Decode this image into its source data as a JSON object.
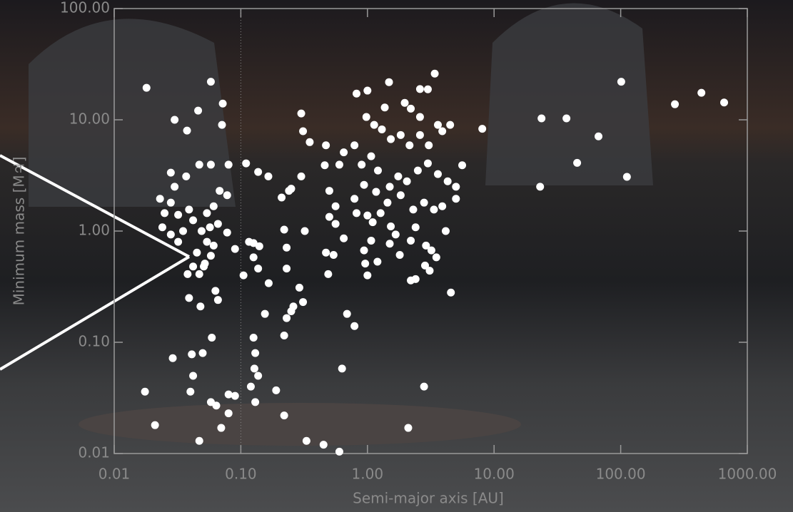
{
  "chart_data": {
    "type": "scatter",
    "xlabel": "Semi-major axis [AU]",
    "ylabel": "Minimum mass [M♃]",
    "log_x": true,
    "log_y": true,
    "xlim": [
      0.01,
      1000
    ],
    "ylim": [
      0.01,
      100
    ],
    "xticks": [
      {
        "value": 0.01,
        "label": "0.01"
      },
      {
        "value": 0.1,
        "label": "0.10"
      },
      {
        "value": 1,
        "label": "1.00"
      },
      {
        "value": 10,
        "label": "10.00"
      },
      {
        "value": 100,
        "label": "100.00"
      },
      {
        "value": 1000,
        "label": "1000.00"
      }
    ],
    "yticks": [
      {
        "value": 0.01,
        "label": "0.01"
      },
      {
        "value": 0.1,
        "label": "0.10"
      },
      {
        "value": 1,
        "label": "1.00"
      },
      {
        "value": 10,
        "label": "10.00"
      },
      {
        "value": 100,
        "label": "100.00"
      }
    ],
    "vlines": [
      0.1
    ],
    "color": "#ffffff",
    "x": [
      656,
      434,
      268,
      101,
      112,
      66.8,
      45.3,
      37.3,
      23.7,
      23.1,
      8.07,
      4.56,
      5.6,
      0.018,
      0.058,
      0.046,
      0.03,
      0.0376,
      0.072,
      0.071,
      0.0175,
      0.021,
      0.029,
      0.047,
      0.04,
      0.042,
      0.05,
      0.059,
      0.058,
      0.064,
      0.08,
      0.09,
      0.07,
      0.08,
      0.041,
      0.063,
      0.039,
      0.048,
      0.066,
      0.049,
      0.054,
      0.045,
      0.052,
      0.042,
      0.058,
      0.047,
      0.038,
      0.057,
      0.042,
      0.032,
      0.025,
      0.024,
      0.028,
      0.032,
      0.035,
      0.061,
      0.039,
      0.028,
      0.023,
      0.03,
      0.028,
      0.037,
      0.047,
      0.058,
      0.08,
      0.068,
      0.078,
      0.054,
      0.066,
      0.078,
      0.09,
      0.061,
      0.051,
      0.11,
      0.137,
      0.165,
      0.105,
      0.116,
      0.126,
      0.14,
      0.126,
      0.137,
      0.166,
      0.155,
      0.126,
      0.13,
      0.128,
      0.137,
      0.12,
      0.13,
      0.19,
      0.22,
      0.22,
      0.23,
      0.25,
      0.26,
      0.29,
      0.31,
      0.22,
      0.23,
      0.23,
      0.21,
      0.24,
      0.25,
      0.3,
      0.3,
      0.31,
      0.35,
      0.32,
      0.33,
      0.45,
      0.6,
      0.47,
      0.46,
      0.5,
      0.56,
      0.56,
      0.5,
      0.47,
      0.49,
      0.54,
      0.6,
      0.65,
      0.65,
      0.63,
      0.69,
      0.79,
      0.82,
      1.0,
      1.48,
      3.4,
      2.6,
      3,
      1.97,
      2.2,
      2.6,
      3.6,
      4.5,
      3.9,
      1.37,
      0.98,
      1.13,
      1.3,
      1.53,
      1.83,
      2.15,
      2.6,
      3.05,
      0.79,
      0.9,
      1.07,
      1.21,
      1.5,
      1.75,
      2.05,
      2.5,
      3,
      3.6,
      4.3,
      5,
      5,
      3.9,
      3.35,
      2.8,
      2.3,
      1.83,
      1.44,
      1.17,
      0.94,
      0.79,
      0.82,
      1.0,
      1.1,
      1.27,
      1.53,
      1.67,
      2.2,
      2.4,
      2.9,
      3.2,
      3.5,
      4.15,
      2.85,
      3.1,
      2.2,
      2.4,
      1.8,
      1.5,
      1.07,
      0.94,
      0.96,
      1.2,
      1.0,
      2.1,
      2.8
    ],
    "values": [
      14.3,
      17.5,
      13.8,
      22,
      3.07,
      7.1,
      4.1,
      10.3,
      10.3,
      2.5,
      8.3,
      0.28,
      3.9,
      19.4,
      22,
      12.1,
      10,
      8,
      14,
      9,
      0.036,
      0.018,
      0.072,
      0.013,
      0.036,
      0.05,
      0.08,
      0.11,
      0.029,
      0.027,
      0.034,
      0.033,
      0.017,
      0.023,
      0.078,
      0.29,
      0.25,
      0.21,
      0.24,
      1.0,
      0.8,
      0.64,
      0.51,
      0.48,
      0.6,
      0.41,
      0.41,
      1.08,
      1.25,
      1.4,
      1.45,
      1.08,
      0.93,
      0.8,
      1.0,
      1.67,
      1.56,
      1.8,
      1.95,
      2.5,
      3.35,
      3.1,
      3.95,
      3.95,
      3.95,
      2.3,
      2.1,
      1.45,
      1.16,
      0.97,
      0.69,
      0.74,
      0.48,
      4.06,
      3.4,
      3.1,
      0.4,
      0.8,
      0.78,
      0.73,
      0.58,
      0.46,
      0.34,
      0.18,
      0.11,
      0.08,
      0.058,
      0.05,
      0.04,
      0.029,
      0.037,
      0.022,
      0.115,
      0.165,
      0.19,
      0.21,
      0.31,
      0.23,
      1.03,
      0.46,
      0.71,
      2.0,
      2.3,
      2.4,
      3.1,
      11.4,
      7.9,
      6.3,
      1.0,
      0.013,
      0.012,
      0.0104,
      5.9,
      3.9,
      2.3,
      1.67,
      1.16,
      1.34,
      0.64,
      0.41,
      0.61,
      3.95,
      5.1,
      0.86,
      0.058,
      0.18,
      0.14,
      17.2,
      18.3,
      21.8,
      26,
      18.9,
      18.8,
      14.2,
      12.6,
      10.6,
      9,
      9,
      7.9,
      12.9,
      10.6,
      9,
      8.2,
      6.7,
      7.3,
      5.9,
      7.3,
      5.9,
      5.9,
      3.95,
      4.7,
      3.5,
      2.5,
      3.1,
      2.8,
      3.5,
      4.06,
      3.25,
      2.8,
      2.5,
      1.95,
      1.67,
      1.56,
      1.8,
      1.56,
      2.1,
      1.8,
      2.25,
      2.6,
      1.95,
      1.45,
      1.38,
      1.2,
      1.45,
      1.1,
      0.93,
      0.82,
      1.08,
      0.74,
      0.67,
      0.58,
      1.0,
      0.49,
      0.44,
      0.36,
      0.37,
      0.61,
      0.77,
      0.82,
      0.67,
      0.51,
      0.53,
      0.4,
      0.017,
      0.04
    ]
  }
}
